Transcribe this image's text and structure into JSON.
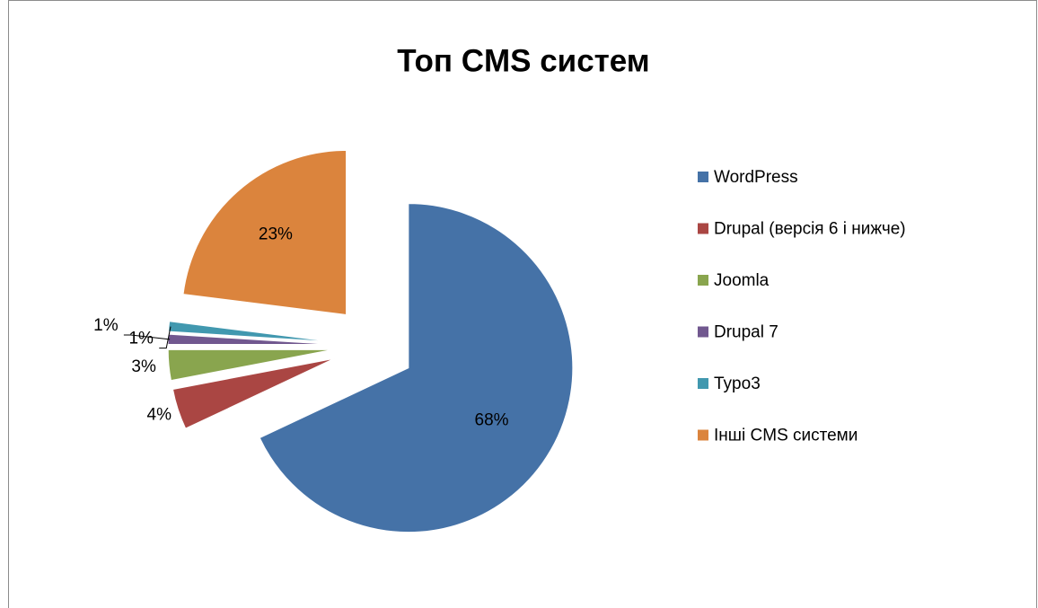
{
  "chart_data": {
    "type": "pie",
    "title": "Топ CMS систем",
    "categories": [
      "WordPress",
      "Drupal (версія 6 і нижче)",
      "Joomla",
      "Drupal 7",
      "Typo3",
      "Інші CMS системи"
    ],
    "values": [
      68,
      4,
      3,
      1,
      1,
      23
    ],
    "value_labels": [
      "68%",
      "4%",
      "3%",
      "1%",
      "1%",
      "23%"
    ],
    "colors": [
      "#4572a7",
      "#aa4643",
      "#89a54e",
      "#71588f",
      "#4198af",
      "#db843d"
    ],
    "legend": "right"
  }
}
